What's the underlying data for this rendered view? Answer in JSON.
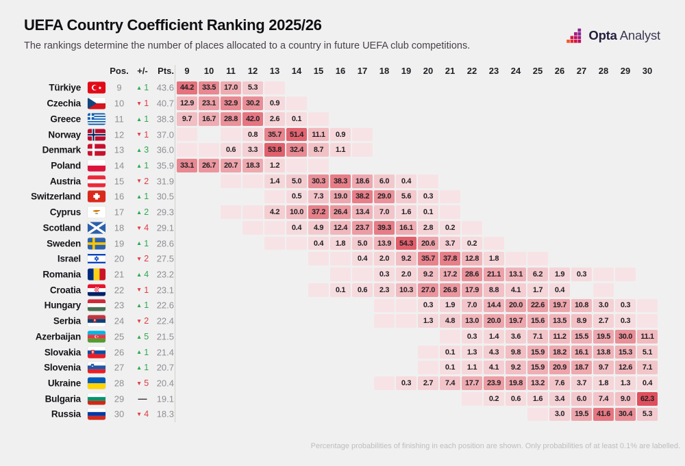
{
  "header": {
    "title": "UEFA Country Coefficient Ranking 2025/26",
    "subtitle": "The rankings determine the number of places allocated to a country in future UEFA club competitions."
  },
  "logo": {
    "brand": "Opta",
    "product": "Analyst"
  },
  "columns": {
    "pos": "Pos.",
    "change": "+/-",
    "pts": "Pts."
  },
  "footer": "Percentage probabilities of finishing in each position are shown. Only probabilities of at least 0.1% are labelled.",
  "colors": {
    "background": "#f0f0f0",
    "up": "#2ea84e",
    "down": "#e23b43",
    "cell_min": "#f8e7e9",
    "cell_max": "#df505d",
    "cell_low": "#f7e3e6",
    "max_value": 62.3
  },
  "chart_data": {
    "type": "heatmap",
    "title": "UEFA Country Coefficient Ranking 2025/26",
    "x_label_positions": "final ranking position",
    "positions": [
      9,
      10,
      11,
      12,
      13,
      14,
      15,
      16,
      17,
      18,
      19,
      20,
      21,
      22,
      23,
      24,
      25,
      26,
      27,
      28,
      29,
      30
    ],
    "low_label": "low",
    "rows": [
      {
        "country": "Türkiye",
        "flag": "tr",
        "pos": "9",
        "change": {
          "dir": "up",
          "n": "1"
        },
        "pts": "43.6",
        "cells": {
          "9": "44.2",
          "10": "33.5",
          "11": "17.0",
          "12": "5.3",
          "13": "low"
        }
      },
      {
        "country": "Czechia",
        "flag": "cz",
        "pos": "10",
        "change": {
          "dir": "down",
          "n": "1"
        },
        "pts": "40.7",
        "cells": {
          "9": "12.9",
          "10": "23.1",
          "11": "32.9",
          "12": "30.2",
          "13": "0.9",
          "14": "low"
        }
      },
      {
        "country": "Greece",
        "flag": "gr",
        "pos": "11",
        "change": {
          "dir": "up",
          "n": "1"
        },
        "pts": "38.3",
        "cells": {
          "9": "9.7",
          "10": "16.7",
          "11": "28.8",
          "12": "42.0",
          "13": "2.6",
          "14": "0.1",
          "15": "low"
        }
      },
      {
        "country": "Norway",
        "flag": "no",
        "pos": "12",
        "change": {
          "dir": "down",
          "n": "1"
        },
        "pts": "37.0",
        "cells": {
          "9": "low",
          "11": "low",
          "12": "0.8",
          "13": "35.7",
          "14": "51.4",
          "15": "11.1",
          "16": "0.9",
          "17": "low"
        }
      },
      {
        "country": "Denmark",
        "flag": "dk",
        "pos": "13",
        "change": {
          "dir": "up",
          "n": "3"
        },
        "pts": "36.0",
        "cells": {
          "9": "low",
          "10": "low",
          "11": "0.6",
          "12": "3.3",
          "13": "53.8",
          "14": "32.4",
          "15": "8.7",
          "16": "1.1",
          "17": "low"
        }
      },
      {
        "country": "Poland",
        "flag": "pl",
        "pos": "14",
        "change": {
          "dir": "up",
          "n": "1"
        },
        "pts": "35.9",
        "cells": {
          "9": "33.1",
          "10": "26.7",
          "11": "20.7",
          "12": "18.3",
          "13": "1.2",
          "14": "low",
          "15": "low"
        }
      },
      {
        "country": "Austria",
        "flag": "at",
        "pos": "15",
        "change": {
          "dir": "down",
          "n": "2"
        },
        "pts": "31.9",
        "cells": {
          "11": "low",
          "12": "low",
          "13": "1.4",
          "14": "5.0",
          "15": "30.3",
          "16": "38.3",
          "17": "18.6",
          "18": "6.0",
          "19": "0.4",
          "20": "low"
        }
      },
      {
        "country": "Switzerland",
        "flag": "ch",
        "pos": "16",
        "change": {
          "dir": "up",
          "n": "1"
        },
        "pts": "30.5",
        "cells": {
          "13": "low",
          "14": "0.5",
          "15": "7.3",
          "16": "19.0",
          "17": "38.2",
          "18": "29.0",
          "19": "5.6",
          "20": "0.3",
          "21": "low"
        }
      },
      {
        "country": "Cyprus",
        "flag": "cy",
        "pos": "17",
        "change": {
          "dir": "up",
          "n": "2"
        },
        "pts": "29.3",
        "cells": {
          "11": "low",
          "12": "low",
          "13": "4.2",
          "14": "10.0",
          "15": "37.2",
          "16": "26.4",
          "17": "13.4",
          "18": "7.0",
          "19": "1.6",
          "20": "0.1",
          "21": "low"
        }
      },
      {
        "country": "Scotland",
        "flag": "sct",
        "pos": "18",
        "change": {
          "dir": "down",
          "n": "4"
        },
        "pts": "29.1",
        "cells": {
          "12": "low",
          "13": "low",
          "14": "0.4",
          "15": "4.9",
          "16": "12.4",
          "17": "23.7",
          "18": "39.3",
          "19": "16.1",
          "20": "2.8",
          "21": "0.2",
          "22": "low"
        }
      },
      {
        "country": "Sweden",
        "flag": "se",
        "pos": "19",
        "change": {
          "dir": "up",
          "n": "1"
        },
        "pts": "28.6",
        "cells": {
          "13": "low",
          "14": "low",
          "15": "0.4",
          "16": "1.8",
          "17": "5.0",
          "18": "13.9",
          "19": "54.3",
          "20": "20.6",
          "21": "3.7",
          "22": "0.2",
          "23": "low"
        }
      },
      {
        "country": "Israel",
        "flag": "il",
        "pos": "20",
        "change": {
          "dir": "down",
          "n": "2"
        },
        "pts": "27.5",
        "cells": {
          "15": "low",
          "16": "low",
          "17": "0.4",
          "18": "2.0",
          "19": "9.2",
          "20": "35.7",
          "21": "37.8",
          "22": "12.8",
          "23": "1.8",
          "24": "low",
          "25": "low"
        }
      },
      {
        "country": "Romania",
        "flag": "ro",
        "pos": "21",
        "change": {
          "dir": "up",
          "n": "4"
        },
        "pts": "23.2",
        "cells": {
          "16": "low",
          "17": "low",
          "18": "0.3",
          "19": "2.0",
          "20": "9.2",
          "21": "17.2",
          "22": "28.6",
          "23": "21.1",
          "24": "13.1",
          "25": "6.2",
          "26": "1.9",
          "27": "0.3",
          "28": "low",
          "29": "low"
        }
      },
      {
        "country": "Croatia",
        "flag": "hr",
        "pos": "22",
        "change": {
          "dir": "down",
          "n": "1"
        },
        "pts": "23.1",
        "cells": {
          "15": "low",
          "16": "0.1",
          "17": "0.6",
          "18": "2.3",
          "19": "10.3",
          "20": "27.0",
          "21": "26.8",
          "22": "17.9",
          "23": "8.8",
          "24": "4.1",
          "25": "1.7",
          "26": "0.4",
          "28": "low"
        }
      },
      {
        "country": "Hungary",
        "flag": "hu",
        "pos": "23",
        "change": {
          "dir": "up",
          "n": "1"
        },
        "pts": "22.6",
        "cells": {
          "18": "low",
          "19": "low",
          "20": "0.3",
          "21": "1.9",
          "22": "7.0",
          "23": "14.4",
          "24": "20.0",
          "25": "22.6",
          "26": "19.7",
          "27": "10.8",
          "28": "3.0",
          "29": "0.3",
          "30": "low"
        }
      },
      {
        "country": "Serbia",
        "flag": "rs",
        "pos": "24",
        "change": {
          "dir": "down",
          "n": "2"
        },
        "pts": "22.4",
        "cells": {
          "18": "low",
          "19": "low",
          "20": "1.3",
          "21": "4.8",
          "22": "13.0",
          "23": "20.0",
          "24": "19.7",
          "25": "15.6",
          "26": "13.5",
          "27": "8.9",
          "28": "2.7",
          "29": "0.3",
          "30": "low"
        }
      },
      {
        "country": "Azerbaijan",
        "flag": "az",
        "pos": "25",
        "change": {
          "dir": "up",
          "n": "5"
        },
        "pts": "21.5",
        "cells": {
          "21": "low",
          "22": "0.3",
          "23": "1.4",
          "24": "3.6",
          "25": "7.1",
          "26": "11.2",
          "27": "15.5",
          "28": "19.5",
          "29": "30.0",
          "30": "11.1"
        }
      },
      {
        "country": "Slovakia",
        "flag": "sk",
        "pos": "26",
        "change": {
          "dir": "up",
          "n": "1"
        },
        "pts": "21.4",
        "cells": {
          "20": "low",
          "21": "0.1",
          "22": "1.3",
          "23": "4.3",
          "24": "9.8",
          "25": "15.9",
          "26": "18.2",
          "27": "16.1",
          "28": "13.8",
          "29": "15.3",
          "30": "5.1"
        }
      },
      {
        "country": "Slovenia",
        "flag": "si",
        "pos": "27",
        "change": {
          "dir": "up",
          "n": "1"
        },
        "pts": "20.7",
        "cells": {
          "20": "low",
          "21": "0.1",
          "22": "1.1",
          "23": "4.1",
          "24": "9.2",
          "25": "15.9",
          "26": "20.9",
          "27": "18.7",
          "28": "9.7",
          "29": "12.6",
          "30": "7.1"
        }
      },
      {
        "country": "Ukraine",
        "flag": "ua",
        "pos": "28",
        "change": {
          "dir": "down",
          "n": "5"
        },
        "pts": "20.4",
        "cells": {
          "18": "low",
          "19": "0.3",
          "20": "2.7",
          "21": "7.4",
          "22": "17.7",
          "23": "23.9",
          "24": "19.8",
          "25": "13.2",
          "26": "7.6",
          "27": "3.7",
          "28": "1.8",
          "29": "1.3",
          "30": "0.4"
        }
      },
      {
        "country": "Bulgaria",
        "flag": "bg",
        "pos": "29",
        "change": {
          "dir": "same",
          "n": null
        },
        "pts": "19.1",
        "cells": {
          "22": "low",
          "23": "0.2",
          "24": "0.6",
          "25": "1.6",
          "26": "3.4",
          "27": "6.0",
          "28": "7.4",
          "29": "9.0",
          "30": "62.3"
        }
      },
      {
        "country": "Russia",
        "flag": "ru",
        "pos": "30",
        "change": {
          "dir": "down",
          "n": "4"
        },
        "pts": "18.3",
        "cells": {
          "25": "low",
          "26": "3.0",
          "27": "19.5",
          "28": "41.6",
          "29": "30.4",
          "30": "5.3"
        }
      }
    ]
  }
}
